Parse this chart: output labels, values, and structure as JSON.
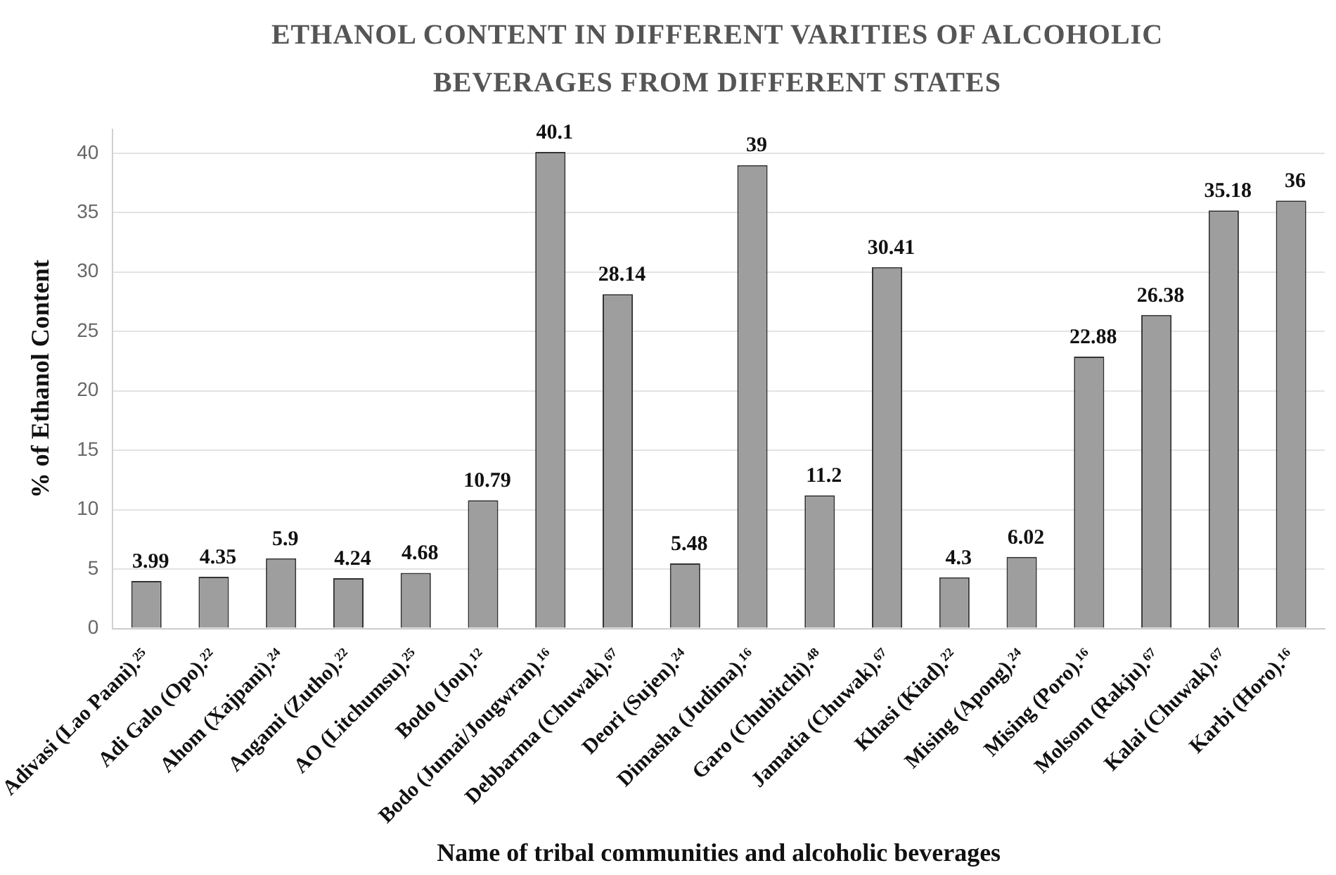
{
  "chart_data": {
    "type": "bar",
    "title": "ETHANOL CONTENT IN DIFFERENT VARITIES OF ALCOHOLIC BEVERAGES FROM DIFFERENT STATES",
    "xlabel": "Name of tribal communities and alcoholic beverages",
    "ylabel": "% of Ethanol Content",
    "categories": [
      "Adivasi (Lao Paani).²⁵",
      "Adi Galo (Opo).²²",
      "Ahom (Xajpani).²⁴",
      "Angami (Zutho).²²",
      "AO (Litchumsu).²⁵",
      "Bodo (Jou).¹²",
      "Bodo (Jumai/Jougwran).¹⁶",
      "Debbarma (Chuwak).⁶⁷",
      "Deori (Sujen).²⁴",
      "Dimasha (Judima).¹⁶",
      "Garo (Chubitchi).⁴⁸",
      "Jamatia (Chuwak).⁶⁷",
      "Khasi (Kiad).²²",
      "Mising (Apong).²⁴",
      "Mising (Poro).¹⁶",
      "Molsom (Rakju).⁶⁷",
      "Kalai (Chuwak).⁶⁷",
      "Karbi (Horo).¹⁶"
    ],
    "values": [
      3.99,
      4.35,
      5.9,
      4.24,
      4.68,
      10.79,
      40.1,
      28.14,
      5.48,
      39,
      11.2,
      30.41,
      4.3,
      6.02,
      22.88,
      26.38,
      35.18,
      36
    ],
    "color": "#9e9e9e",
    "ylim": [
      0,
      42
    ],
    "yticks": [
      0,
      5,
      10,
      15,
      20,
      25,
      30,
      35,
      40
    ],
    "grid": "y",
    "data_labels": true
  }
}
